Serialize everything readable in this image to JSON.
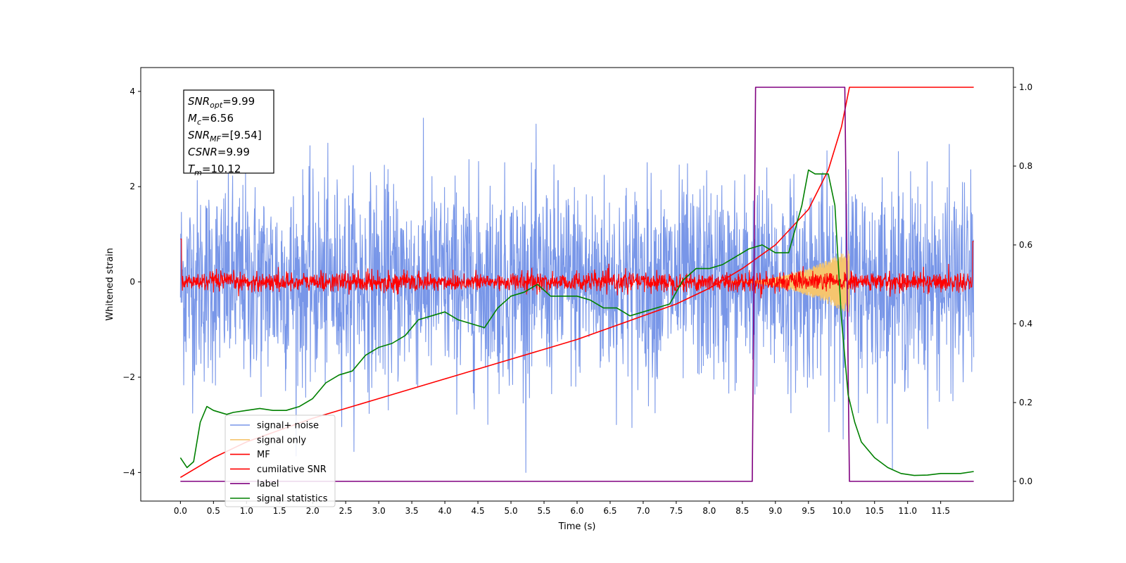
{
  "chart_data": {
    "type": "line",
    "title": "",
    "xlabel": "Time (s)",
    "ylabel": "Whitened strain",
    "xlim": [
      -0.6,
      12.6
    ],
    "ylim": [
      -4.6,
      4.5
    ],
    "y2lim": [
      -0.05,
      1.05
    ],
    "x_ticks": [
      "0.0",
      "0.5",
      "1.0",
      "1.5",
      "2.0",
      "2.5",
      "3.0",
      "3.5",
      "4.0",
      "4.5",
      "5.0",
      "5.5",
      "6.0",
      "6.5",
      "7.0",
      "7.5",
      "8.0",
      "8.5",
      "9.0",
      "9.5",
      "10.0",
      "10.5",
      "11.0",
      "11.5"
    ],
    "y_ticks": [
      "4",
      "2",
      "0",
      "−2",
      "−4"
    ],
    "y2_ticks": [
      "1.0",
      "0.8",
      "0.6",
      "0.4",
      "0.2",
      "0.0"
    ],
    "grid": false,
    "legend_position": "lower-left",
    "annotation_lines": [
      {
        "name": "SNR",
        "sub": "opt",
        "value": "=9.99"
      },
      {
        "name": "M",
        "sub": "c",
        "value": "=6.56"
      },
      {
        "name": "SNR",
        "sub": "MF",
        "value": "=[9.54]"
      },
      {
        "name": "CSNR",
        "sub": "",
        "value": "=9.99"
      },
      {
        "name": "T",
        "sub": "m",
        "value": "=10.12"
      }
    ],
    "series": [
      {
        "name": "signal+ noise",
        "color": "#7896e8",
        "axis": "left",
        "style": "noise",
        "x_range": [
          0,
          12
        ],
        "amplitude_approx": 4.0
      },
      {
        "name": "signal only",
        "color": "#f5c56e",
        "axis": "left",
        "style": "chirp",
        "x_range": [
          8.2,
          10.12
        ],
        "peak_amplitude": 0.7
      },
      {
        "name": "MF",
        "color": "#ff0000",
        "axis": "left",
        "style": "noise",
        "x_range": [
          0,
          12
        ],
        "amplitude_approx": 0.3
      },
      {
        "name": "cumilative SNR",
        "color": "#ff0000",
        "axis": "right",
        "x": [
          0.0,
          0.5,
          1.0,
          2.0,
          3.0,
          4.0,
          5.0,
          6.0,
          7.0,
          7.5,
          8.0,
          8.5,
          9.0,
          9.5,
          9.8,
          10.0,
          10.12,
          12.0
        ],
        "y": [
          0.01,
          0.06,
          0.1,
          0.16,
          0.21,
          0.26,
          0.31,
          0.36,
          0.42,
          0.45,
          0.49,
          0.54,
          0.6,
          0.69,
          0.79,
          0.9,
          1.0,
          1.0
        ]
      },
      {
        "name": "label",
        "color": "#800080",
        "axis": "right",
        "x": [
          0.0,
          8.65,
          8.7,
          10.05,
          10.12,
          12.0
        ],
        "y": [
          0.0,
          0.0,
          1.0,
          1.0,
          0.0,
          0.0
        ]
      },
      {
        "name": "signal statistics",
        "color": "#008000",
        "axis": "right",
        "x": [
          0.0,
          0.1,
          0.2,
          0.3,
          0.4,
          0.5,
          0.7,
          0.8,
          1.0,
          1.2,
          1.4,
          1.6,
          1.8,
          2.0,
          2.2,
          2.4,
          2.6,
          2.8,
          3.0,
          3.2,
          3.4,
          3.6,
          3.8,
          4.0,
          4.2,
          4.4,
          4.6,
          4.8,
          5.0,
          5.2,
          5.4,
          5.6,
          5.8,
          6.0,
          6.2,
          6.4,
          6.6,
          6.8,
          7.0,
          7.2,
          7.4,
          7.6,
          7.8,
          8.0,
          8.2,
          8.4,
          8.6,
          8.8,
          9.0,
          9.2,
          9.4,
          9.5,
          9.6,
          9.8,
          9.9,
          10.0,
          10.1,
          10.2,
          10.3,
          10.5,
          10.7,
          10.9,
          11.1,
          11.3,
          11.5,
          11.8,
          12.0
        ],
        "y": [
          0.06,
          0.035,
          0.05,
          0.15,
          0.19,
          0.18,
          0.17,
          0.175,
          0.18,
          0.185,
          0.18,
          0.18,
          0.19,
          0.21,
          0.25,
          0.27,
          0.28,
          0.32,
          0.34,
          0.35,
          0.37,
          0.41,
          0.42,
          0.43,
          0.41,
          0.4,
          0.39,
          0.44,
          0.47,
          0.48,
          0.5,
          0.47,
          0.47,
          0.47,
          0.46,
          0.44,
          0.44,
          0.42,
          0.43,
          0.44,
          0.45,
          0.51,
          0.54,
          0.54,
          0.55,
          0.57,
          0.59,
          0.6,
          0.58,
          0.58,
          0.7,
          0.79,
          0.78,
          0.78,
          0.7,
          0.41,
          0.22,
          0.15,
          0.1,
          0.06,
          0.035,
          0.02,
          0.015,
          0.016,
          0.02,
          0.02,
          0.025
        ]
      }
    ]
  }
}
